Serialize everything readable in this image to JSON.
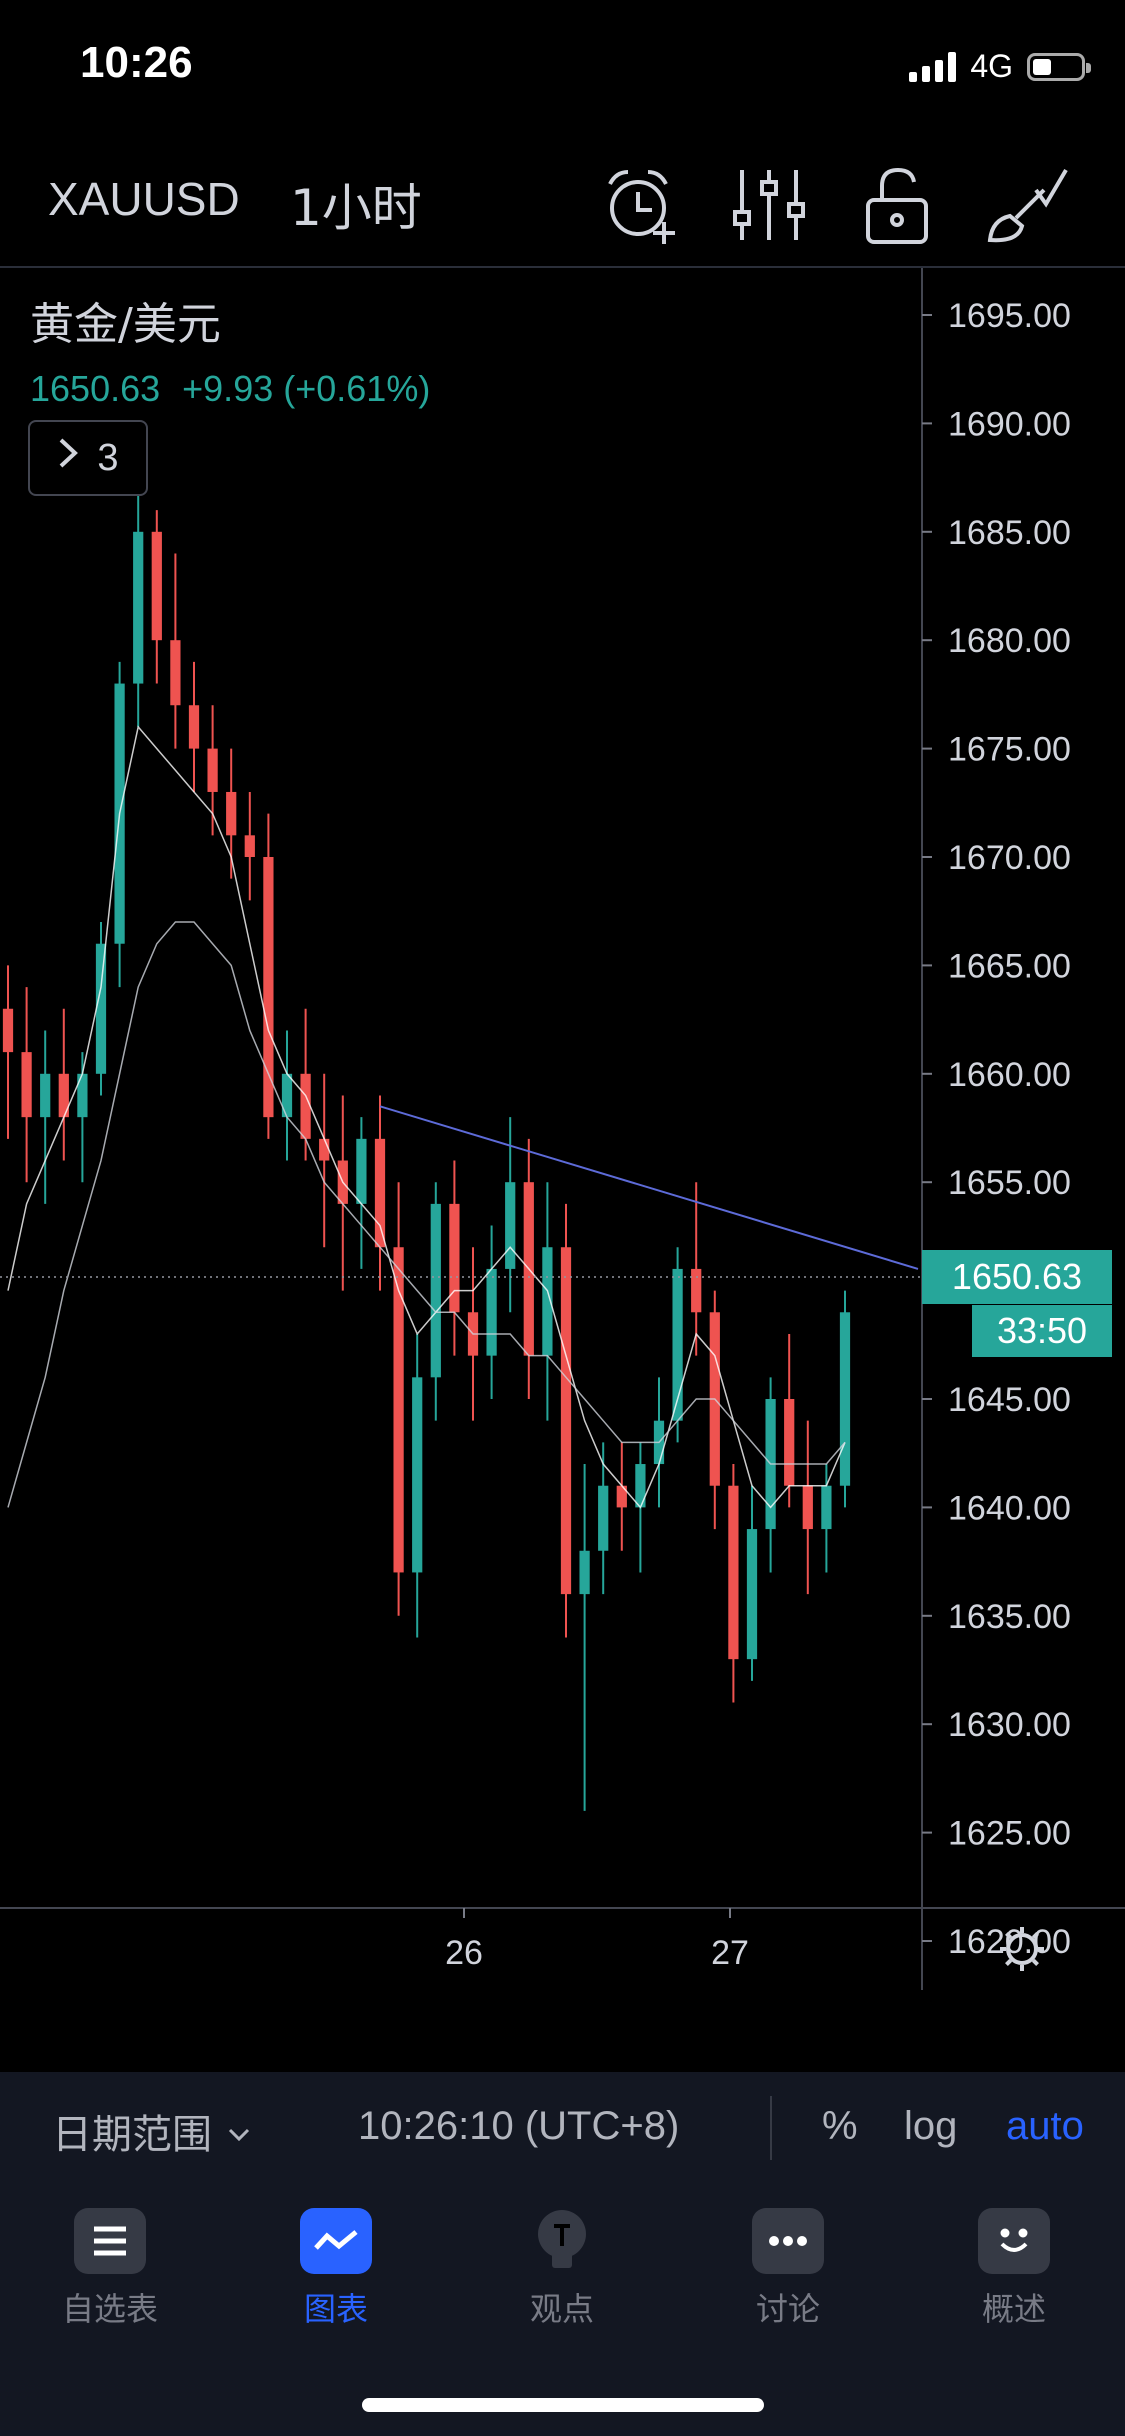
{
  "status_bar": {
    "time": "10:26",
    "network": "4G"
  },
  "toolbar": {
    "symbol": "XAUUSD",
    "interval": "1小时",
    "icons": [
      "alarm-add-icon",
      "indicators-icon",
      "lock-icon",
      "brush-icon"
    ]
  },
  "legend": {
    "title": "黄金/美元",
    "last": "1650.63",
    "change": "+9.93",
    "change_pct": "(+0.61%)",
    "indicator_count": "3"
  },
  "colors": {
    "up": "#26a69a",
    "down": "#ef5350",
    "accent": "#2962ff",
    "background": "#000000",
    "panel": "#131722"
  },
  "price_scale": {
    "ticks": [
      "1695.00",
      "1690.00",
      "1685.00",
      "1680.00",
      "1675.00",
      "1670.00",
      "1665.00",
      "1660.00",
      "1655.00",
      "1650.00",
      "1645.00",
      "1640.00",
      "1635.00",
      "1630.00",
      "1625.00",
      "1620.00"
    ],
    "current_price": "1650.63",
    "countdown": "33:50"
  },
  "time_scale": {
    "ticks": [
      "26",
      "27"
    ]
  },
  "chart_data": {
    "type": "candlestick",
    "ylim": [
      1617,
      1697
    ],
    "last_price": 1650.63,
    "candles": [
      [
        1663,
        1665,
        1657,
        1661
      ],
      [
        1661,
        1664,
        1655,
        1658
      ],
      [
        1658,
        1662,
        1654,
        1660
      ],
      [
        1660,
        1663,
        1656,
        1658
      ],
      [
        1658,
        1661,
        1655,
        1660
      ],
      [
        1660,
        1667,
        1659,
        1666
      ],
      [
        1666,
        1679,
        1664,
        1678
      ],
      [
        1678,
        1688,
        1676,
        1685
      ],
      [
        1685,
        1686,
        1678,
        1680
      ],
      [
        1680,
        1684,
        1675,
        1677
      ],
      [
        1677,
        1679,
        1673,
        1675
      ],
      [
        1675,
        1677,
        1671,
        1673
      ],
      [
        1673,
        1675,
        1669,
        1671
      ],
      [
        1671,
        1673,
        1668,
        1670
      ],
      [
        1670,
        1672,
        1657,
        1658
      ],
      [
        1658,
        1662,
        1656,
        1660
      ],
      [
        1660,
        1663,
        1656,
        1657
      ],
      [
        1657,
        1660,
        1652,
        1656
      ],
      [
        1656,
        1659,
        1650,
        1654
      ],
      [
        1654,
        1658,
        1651,
        1657
      ],
      [
        1657,
        1659,
        1650,
        1652
      ],
      [
        1652,
        1655,
        1635,
        1637
      ],
      [
        1637,
        1648,
        1634,
        1646
      ],
      [
        1646,
        1655,
        1644,
        1654
      ],
      [
        1654,
        1656,
        1647,
        1649
      ],
      [
        1649,
        1652,
        1644,
        1647
      ],
      [
        1647,
        1653,
        1645,
        1651
      ],
      [
        1651,
        1658,
        1649,
        1655
      ],
      [
        1655,
        1657,
        1645,
        1647
      ],
      [
        1647,
        1655,
        1644,
        1652
      ],
      [
        1652,
        1654,
        1634,
        1636
      ],
      [
        1636,
        1642,
        1626,
        1638
      ],
      [
        1638,
        1643,
        1636,
        1641
      ],
      [
        1641,
        1643,
        1638,
        1640
      ],
      [
        1640,
        1643,
        1637,
        1642
      ],
      [
        1642,
        1646,
        1640,
        1644
      ],
      [
        1644,
        1652,
        1643,
        1651
      ],
      [
        1651,
        1655,
        1647,
        1649
      ],
      [
        1649,
        1650,
        1639,
        1641
      ],
      [
        1641,
        1642,
        1631,
        1633
      ],
      [
        1633,
        1641,
        1632,
        1639
      ],
      [
        1639,
        1646,
        1637,
        1645
      ],
      [
        1645,
        1648,
        1640,
        1641
      ],
      [
        1641,
        1644,
        1636,
        1639
      ],
      [
        1639,
        1642,
        1637,
        1641
      ],
      [
        1641,
        1650,
        1640,
        1649
      ]
    ],
    "moving_averages": [
      {
        "name": "MA short",
        "color": "#ffffff",
        "values": [
          1650,
          1654,
          1656,
          1658,
          1660,
          1664,
          1672,
          1676,
          1675,
          1674,
          1673,
          1672,
          1670,
          1666,
          1662,
          1660,
          1659,
          1657,
          1655,
          1654,
          1653,
          1650,
          1648,
          1649,
          1650,
          1650,
          1651,
          1652,
          1651,
          1650,
          1647,
          1644,
          1642,
          1641,
          1640,
          1642,
          1645,
          1648,
          1647,
          1644,
          1641,
          1640,
          1641,
          1641,
          1641,
          1643
        ]
      },
      {
        "name": "MA long",
        "color": "#d1d4dc",
        "values": [
          1640,
          1643,
          1646,
          1650,
          1653,
          1656,
          1660,
          1664,
          1666,
          1667,
          1667,
          1666,
          1665,
          1662,
          1660,
          1658,
          1657,
          1655,
          1654,
          1653,
          1652,
          1651,
          1650,
          1649,
          1649,
          1648,
          1648,
          1648,
          1647,
          1647,
          1646,
          1645,
          1644,
          1643,
          1643,
          1643,
          1644,
          1645,
          1645,
          1644,
          1643,
          1642,
          1642,
          1642,
          1642,
          1643
        ]
      }
    ],
    "trendline": {
      "from": [
        20,
        1658.5
      ],
      "to": [
        46,
        1651
      ]
    }
  },
  "range_bar": {
    "date_range": "日期范围",
    "time": "10:26:10 (UTC+8)",
    "options": [
      "%",
      "log",
      "auto"
    ],
    "active": "auto"
  },
  "tabs": [
    {
      "label": "自选表",
      "icon": "watchlist-icon"
    },
    {
      "label": "图表",
      "icon": "chart-icon",
      "active": true
    },
    {
      "label": "观点",
      "icon": "ideas-icon"
    },
    {
      "label": "讨论",
      "icon": "chat-icon"
    },
    {
      "label": "概述",
      "icon": "overview-icon"
    }
  ]
}
